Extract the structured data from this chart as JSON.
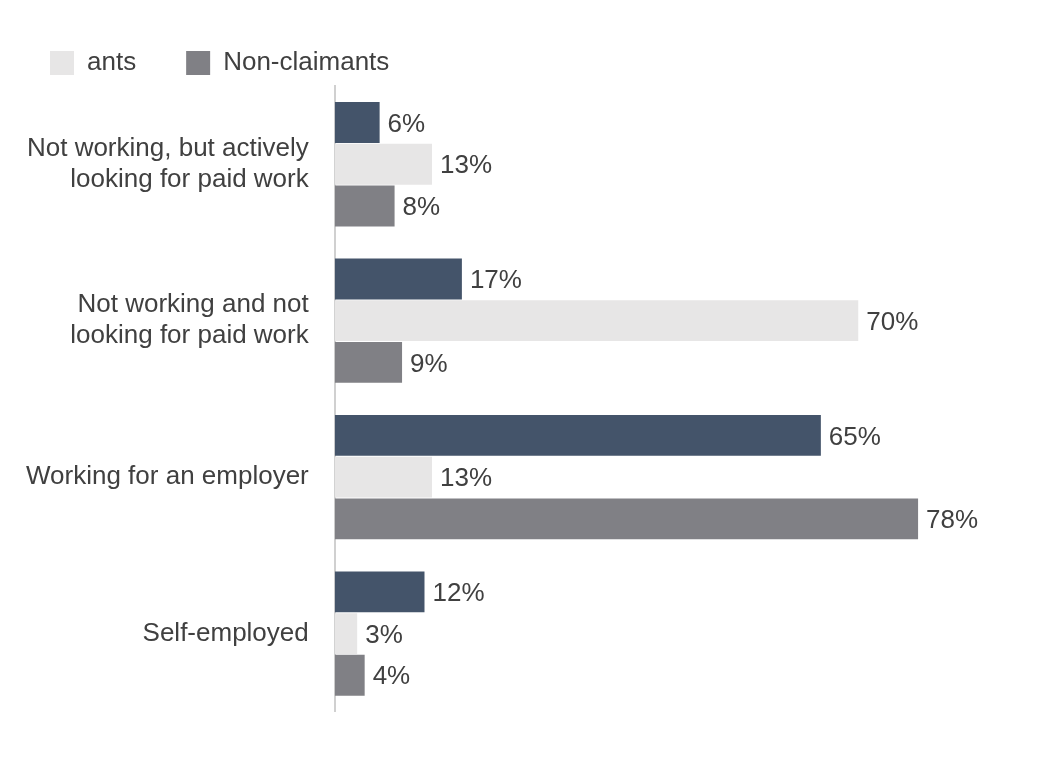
{
  "chart_data": {
    "type": "bar",
    "orientation": "horizontal",
    "categories": [
      "Not working, but actively looking for paid work",
      "Not working and not looking for paid work",
      "Working for an employer",
      "Self-employed"
    ],
    "series": [
      {
        "color": "#44546a",
        "values": [
          6,
          17,
          65,
          12
        ],
        "value_labels": [
          "6%",
          "17%",
          "65%",
          "12%"
        ]
      },
      {
        "name": "ants",
        "color": "#e7e6e6",
        "values": [
          13,
          70,
          13,
          3
        ],
        "value_labels": [
          "13%",
          "70%",
          "13%",
          "3%"
        ]
      },
      {
        "name": "Non-claimants",
        "color": "#808085",
        "values": [
          8,
          9,
          78,
          4
        ],
        "value_labels": [
          "8%",
          "9%",
          "78%",
          "4%"
        ]
      }
    ],
    "legend": "top left",
    "tick_labels": "y"
  }
}
